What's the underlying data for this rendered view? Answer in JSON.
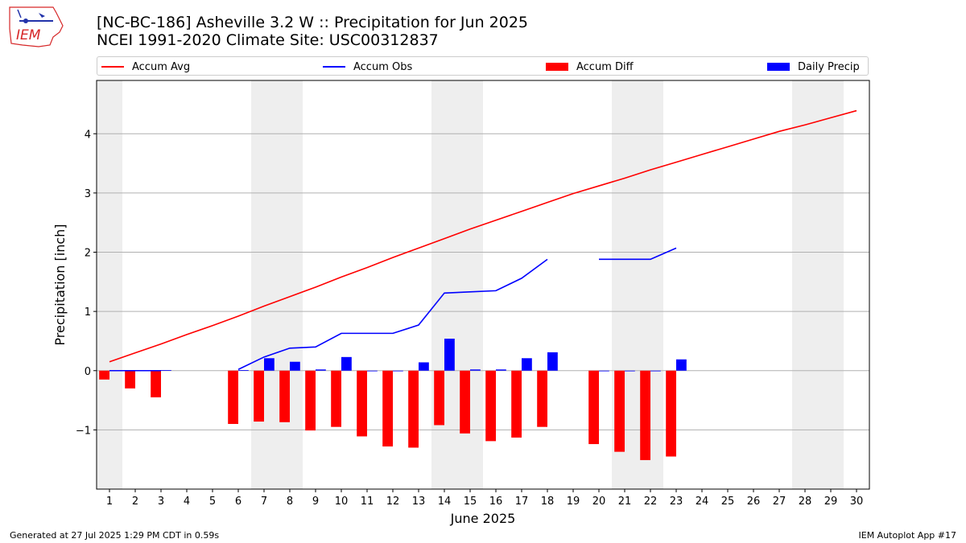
{
  "header": {
    "title_line1": "[NC-BC-186] Asheville 3.2 W :: Precipitation for Jun 2025",
    "title_line2": "NCEI 1991-2020 Climate Site: USC00312837",
    "logo_text": "IEM"
  },
  "legend": [
    {
      "label": "Accum Avg",
      "color": "#ff0000",
      "kind": "line"
    },
    {
      "label": "Accum Obs",
      "color": "#0000ff",
      "kind": "line"
    },
    {
      "label": "Accum Diff",
      "color": "#ff0000",
      "kind": "bar"
    },
    {
      "label": "Daily Precip",
      "color": "#0000ff",
      "kind": "bar"
    }
  ],
  "footer": {
    "left": "Generated at 27 Jul 2025 1:29 PM CDT in 0.59s",
    "right": "IEM Autoplot App #17"
  },
  "chart_data": {
    "type": "bar",
    "xlabel": "June 2025",
    "ylabel": "Precipitation [inch]",
    "xlim": [
      0.5,
      30.5
    ],
    "ylim": [
      -2.0,
      4.9
    ],
    "yticks": [
      -1,
      0,
      1,
      2,
      3,
      4
    ],
    "ytick_labels": [
      "−1",
      "0",
      "1",
      "2",
      "3",
      "4"
    ],
    "days": [
      1,
      2,
      3,
      4,
      5,
      6,
      7,
      8,
      9,
      10,
      11,
      12,
      13,
      14,
      15,
      16,
      17,
      18,
      19,
      20,
      21,
      22,
      23,
      24,
      25,
      26,
      27,
      28,
      29,
      30
    ],
    "weekend_shading": [
      [
        0.5,
        1.5
      ],
      [
        6.5,
        8.5
      ],
      [
        13.5,
        15.5
      ],
      [
        20.5,
        22.5
      ],
      [
        27.5,
        29.5
      ]
    ],
    "grid": "horizontal",
    "series": [
      {
        "name": "Accum Avg",
        "type": "line",
        "color": "#ff0000",
        "values": [
          0.15,
          0.3,
          0.45,
          0.61,
          0.76,
          0.92,
          1.09,
          1.25,
          1.41,
          1.58,
          1.74,
          1.91,
          2.07,
          2.23,
          2.39,
          2.54,
          2.69,
          2.84,
          2.99,
          3.12,
          3.25,
          3.39,
          3.52,
          3.65,
          3.78,
          3.91,
          4.04,
          4.15,
          4.27,
          4.39
        ]
      },
      {
        "name": "Accum Obs",
        "type": "line",
        "color": "#0000ff",
        "values": [
          0.0,
          0.0,
          0.0,
          null,
          null,
          0.02,
          0.23,
          0.38,
          0.4,
          0.63,
          0.63,
          0.63,
          0.77,
          1.31,
          1.33,
          1.35,
          1.56,
          1.88,
          null,
          1.88,
          1.88,
          1.88,
          2.07,
          null,
          null,
          null,
          null,
          null,
          null,
          null
        ]
      },
      {
        "name": "Accum Diff",
        "type": "bar",
        "color": "#ff0000",
        "values": [
          -0.15,
          -0.3,
          -0.45,
          null,
          null,
          -0.9,
          -0.86,
          -0.87,
          -1.01,
          -0.95,
          -1.11,
          -1.28,
          -1.3,
          -0.92,
          -1.06,
          -1.19,
          -1.13,
          -0.95,
          null,
          -1.24,
          -1.37,
          -1.51,
          -1.45,
          null,
          null,
          null,
          null,
          null,
          null,
          null
        ]
      },
      {
        "name": "Daily Precip",
        "type": "bar",
        "color": "#0000ff",
        "values": [
          0.01,
          0.01,
          0.01,
          null,
          null,
          0.01,
          0.21,
          0.15,
          0.02,
          0.23,
          0.0,
          0.0,
          0.14,
          0.54,
          0.02,
          0.02,
          0.21,
          0.31,
          null,
          0.0,
          0.0,
          0.0,
          0.19,
          null,
          null,
          null,
          null,
          null,
          null,
          null
        ]
      }
    ]
  }
}
